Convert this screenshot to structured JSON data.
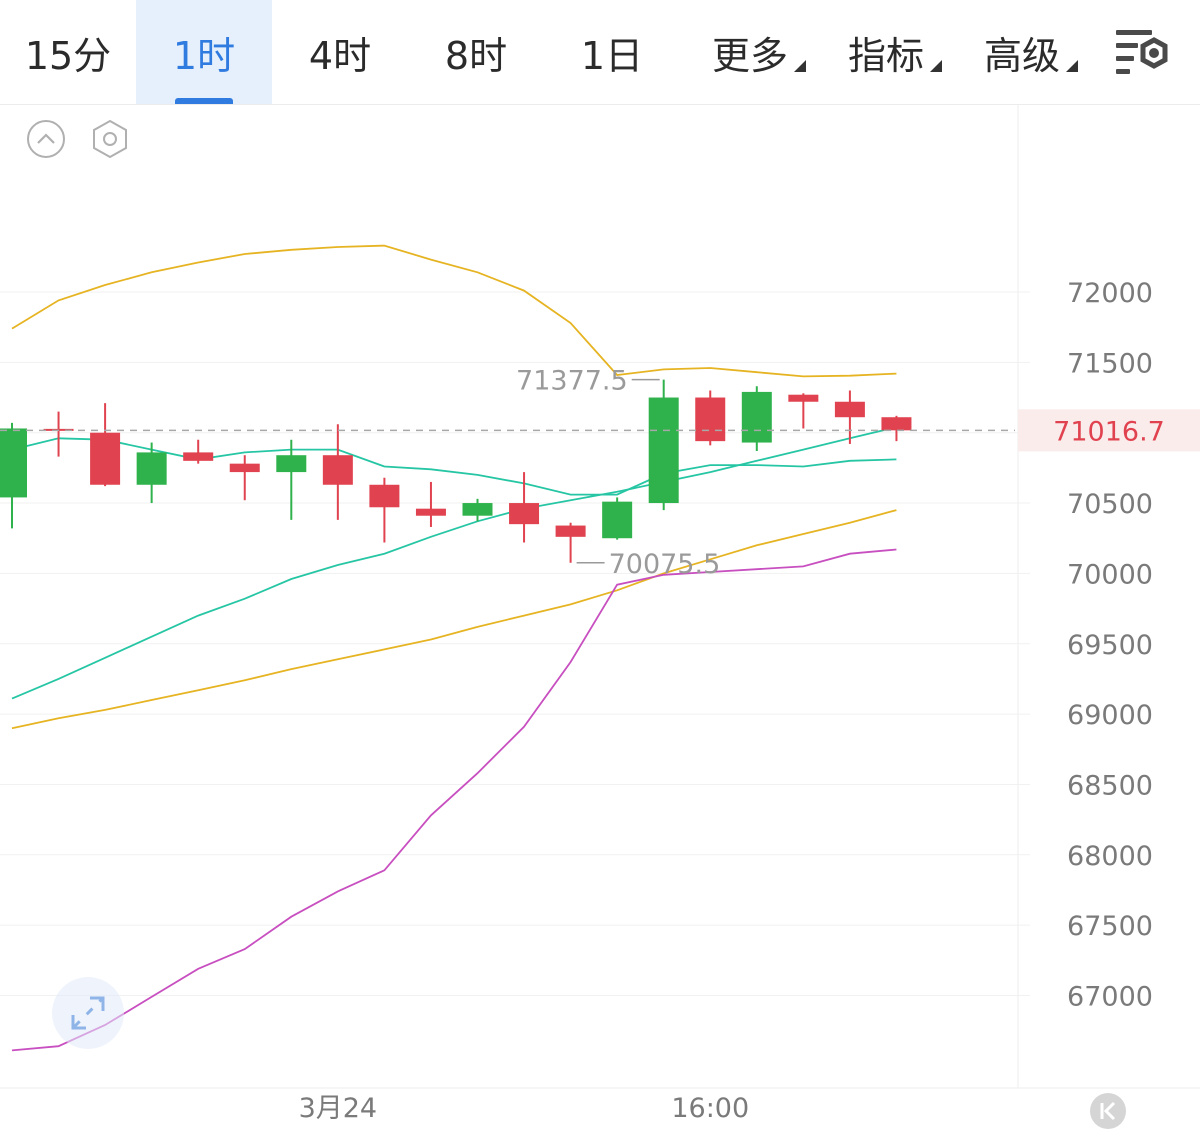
{
  "tabs": [
    {
      "label": "15分"
    },
    {
      "label": "1时",
      "active": true
    },
    {
      "label": "4时"
    },
    {
      "label": "8时"
    },
    {
      "label": "1日"
    },
    {
      "label": "更多",
      "dropdown": true
    },
    {
      "label": "指标",
      "dropdown": true
    },
    {
      "label": "高级",
      "dropdown": true
    }
  ],
  "icons": {
    "settings": "chart-settings-icon",
    "collapse": "chevron-up-circle-icon",
    "indicator": "hexagon-settings-icon",
    "expand": "expand-arrows-icon",
    "back": "back-to-latest-icon"
  },
  "colors": {
    "up": "#2fb24c",
    "down": "#e0434f",
    "active_tab": "#2f7be0",
    "ma_teal": "#26c6a4",
    "ma_yellow": "#e6b422",
    "ma_magenta": "#c84fc0",
    "last_price_text": "#e0434f",
    "last_price_bg": "#fbecec"
  },
  "chart_data": {
    "type": "candlestick",
    "y_axis": {
      "ticks": [
        72000,
        71500,
        71000,
        70500,
        70000,
        69500,
        69000,
        68500,
        68000,
        67500,
        67000
      ],
      "tick_labels": [
        "72000",
        "71500",
        "70500",
        "70000",
        "69500",
        "69000",
        "68500",
        "68000",
        "67500",
        "67000"
      ],
      "range": [
        66560,
        72640
      ]
    },
    "x_axis": {
      "labels": [
        "3月24",
        "16:00"
      ],
      "label_index": [
        7,
        15
      ]
    },
    "last_price": {
      "value": 71016.7,
      "label": "71016.7"
    },
    "high_marker": {
      "value": 71377.5,
      "label": "71377.5",
      "index": 14
    },
    "low_marker": {
      "value": 70075.5,
      "label": "70075.5",
      "index": 12
    },
    "candles": [
      {
        "o": 70540,
        "h": 71070,
        "l": 70320,
        "c": 71030
      },
      {
        "o": 71020,
        "h": 71150,
        "l": 70830,
        "c": 71010
      },
      {
        "o": 71000,
        "h": 71210,
        "l": 70620,
        "c": 70630
      },
      {
        "o": 70630,
        "h": 70930,
        "l": 70500,
        "c": 70860
      },
      {
        "o": 70860,
        "h": 70950,
        "l": 70780,
        "c": 70800
      },
      {
        "o": 70780,
        "h": 70840,
        "l": 70520,
        "c": 70720
      },
      {
        "o": 70720,
        "h": 70950,
        "l": 70380,
        "c": 70840
      },
      {
        "o": 70840,
        "h": 71060,
        "l": 70380,
        "c": 70630
      },
      {
        "o": 70630,
        "h": 70680,
        "l": 70220,
        "c": 70470
      },
      {
        "o": 70460,
        "h": 70650,
        "l": 70330,
        "c": 70410
      },
      {
        "o": 70410,
        "h": 70530,
        "l": 70370,
        "c": 70500
      },
      {
        "o": 70500,
        "h": 70720,
        "l": 70220,
        "c": 70350
      },
      {
        "o": 70340,
        "h": 70360,
        "l": 70075.5,
        "c": 70260
      },
      {
        "o": 70250,
        "h": 70540,
        "l": 70240,
        "c": 70510
      },
      {
        "o": 70500,
        "h": 71377.5,
        "l": 70450,
        "c": 71250
      },
      {
        "o": 71250,
        "h": 71300,
        "l": 70910,
        "c": 70940
      },
      {
        "o": 70930,
        "h": 71330,
        "l": 70870,
        "c": 71290
      },
      {
        "o": 71270,
        "h": 71280,
        "l": 71030,
        "c": 71220
      },
      {
        "o": 71220,
        "h": 71300,
        "l": 70920,
        "c": 71110
      },
      {
        "o": 71110,
        "h": 71120,
        "l": 70940,
        "c": 71016.7
      }
    ],
    "series": [
      {
        "color": "#e6b422",
        "values": [
          71740,
          71940,
          72050,
          72140,
          72210,
          72270,
          72300,
          72320,
          72330,
          72230,
          72140,
          72010,
          71780,
          71410,
          71450,
          71460,
          71430,
          71400,
          71405,
          71420
        ]
      },
      {
        "color": "#26c6a4",
        "values": [
          70880,
          70960,
          70950,
          70880,
          70810,
          70860,
          70880,
          70880,
          70760,
          70740,
          70700,
          70640,
          70560,
          70560,
          70710,
          70770,
          70770,
          70760,
          70800,
          70810
        ]
      },
      {
        "color": "#26c6a4",
        "values": [
          69110,
          69250,
          69400,
          69550,
          69700,
          69820,
          69960,
          70060,
          70140,
          70260,
          70370,
          70460,
          70520,
          70580,
          70650,
          70720,
          70800,
          70880,
          70960,
          71040
        ]
      },
      {
        "color": "#e6b422",
        "values": [
          68900,
          68970,
          69030,
          69100,
          69170,
          69240,
          69320,
          69390,
          69460,
          69530,
          69620,
          69700,
          69780,
          69880,
          70000,
          70100,
          70200,
          70280,
          70360,
          70450
        ]
      },
      {
        "color": "#c84fc0",
        "values": [
          66610,
          66640,
          66790,
          66990,
          67190,
          67330,
          67560,
          67740,
          67890,
          68280,
          68580,
          68910,
          69370,
          69920,
          69990,
          70010,
          70030,
          70050,
          70140,
          70170
        ]
      }
    ]
  }
}
